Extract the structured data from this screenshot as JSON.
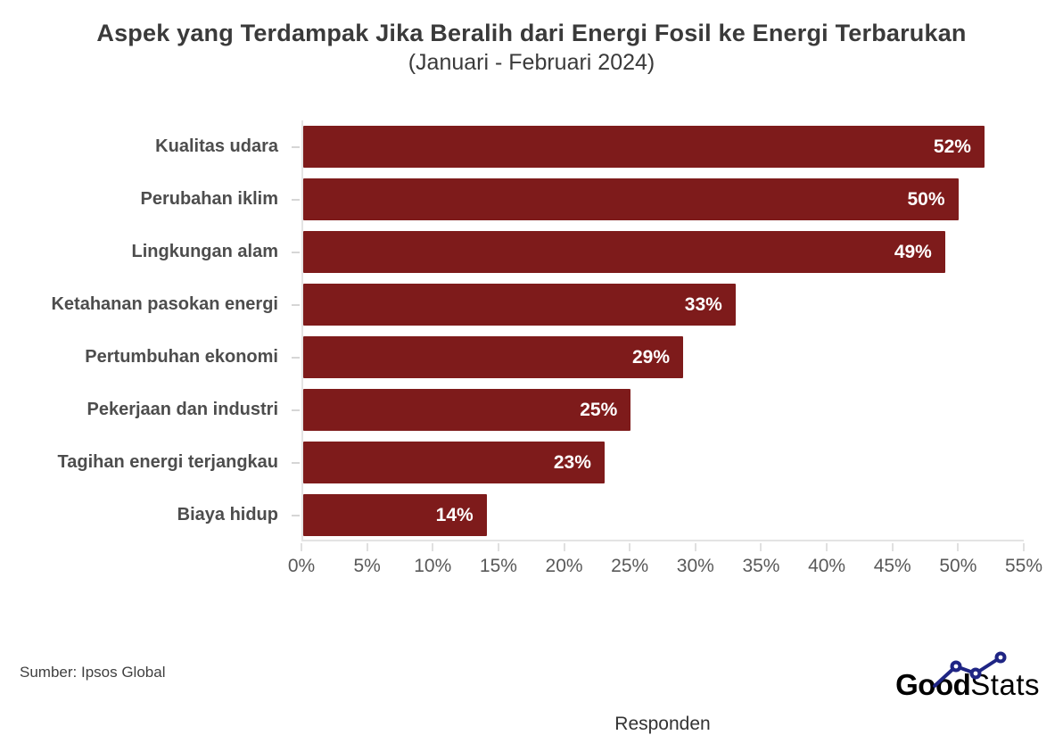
{
  "title": "Aspek yang Terdampak Jika Beralih dari Energi Fosil ke Energi Terbarukan",
  "subtitle": "(Januari - Februari 2024)",
  "source": "Sumber: Ipsos Global",
  "logo": {
    "bold": "Good",
    "light": "Stats"
  },
  "colors": {
    "bar": "#7e1b1b",
    "value_label": "#ffffff",
    "title_text": "#3a3a3a",
    "category_text": "#4d4d4d",
    "tick_text": "#595959",
    "axis_line": "#e4e4e4",
    "logo_navy": "#1f2584"
  },
  "chart_data": {
    "type": "bar",
    "orientation": "horizontal",
    "title": "Aspek yang Terdampak Jika Beralih dari Energi Fosil ke Energi Terbarukan",
    "subtitle": "(Januari - Februari 2024)",
    "categories": [
      "Kualitas udara",
      "Perubahan iklim",
      "Lingkungan alam",
      "Ketahanan pasokan energi",
      "Pertumbuhan ekonomi",
      "Pekerjaan dan industri",
      "Tagihan energi terjangkau",
      "Biaya hidup"
    ],
    "values": [
      52,
      50,
      49,
      33,
      29,
      25,
      23,
      14
    ],
    "value_labels": [
      "52%",
      "50%",
      "49%",
      "33%",
      "29%",
      "25%",
      "23%",
      "14%"
    ],
    "xlabel": "Responden",
    "ylabel": "",
    "xlim": [
      0,
      55
    ],
    "xtick_step": 5,
    "xtick_labels": [
      "0%",
      "5%",
      "10%",
      "15%",
      "20%",
      "25%",
      "30%",
      "35%",
      "40%",
      "45%",
      "50%",
      "55%"
    ],
    "grid": false,
    "legend": false,
    "bar_color": "#7e1b1b",
    "value_label_position": "inside-end"
  }
}
